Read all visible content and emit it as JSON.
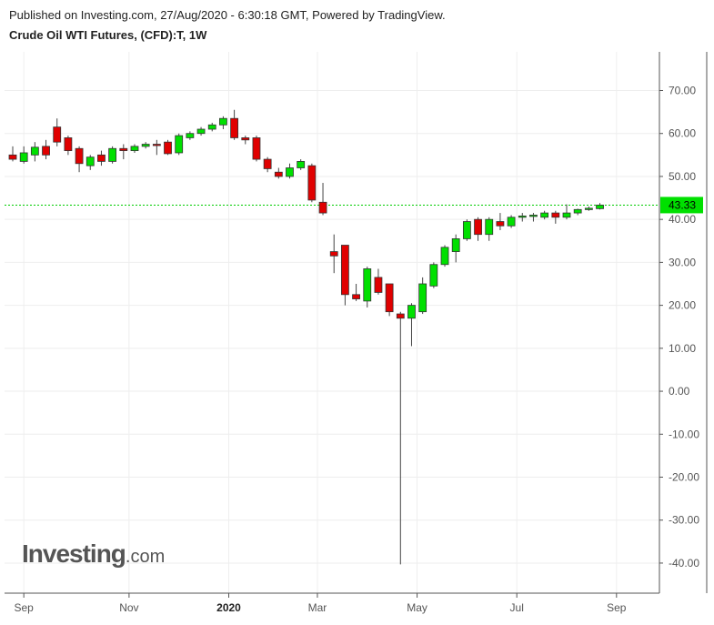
{
  "header": {
    "published": "Published on Investing.com, 27/Aug/2020 - 6:30:18 GMT, Powered by TradingView.",
    "title": "Crude Oil WTI Futures, (CFD):T, 1W"
  },
  "brand": {
    "name": "Investing",
    "suffix": ".com"
  },
  "colors": {
    "up": "#00e000",
    "down": "#e00000",
    "last_line": "#00cc00",
    "grid": "#eeeeee",
    "wick": "#444444"
  },
  "chart_data": {
    "type": "candlestick",
    "interval": "1W",
    "ylim": [
      -47,
      79
    ],
    "y_ticks": [
      "70.00",
      "60.00",
      "50.00",
      "40.00",
      "30.00",
      "20.00",
      "10.00",
      "0.00",
      "-10.00",
      "-20.00",
      "-30.00",
      "-40.00"
    ],
    "x_ticks": [
      {
        "label": "Sep",
        "week": 1,
        "bold": false
      },
      {
        "label": "Nov",
        "week": 10.5,
        "bold": false
      },
      {
        "label": "2020",
        "week": 19.5,
        "bold": true
      },
      {
        "label": "Mar",
        "week": 27.5,
        "bold": false
      },
      {
        "label": "May",
        "week": 36.5,
        "bold": false
      },
      {
        "label": "Jul",
        "week": 45.5,
        "bold": false
      },
      {
        "label": "Sep",
        "week": 54.5,
        "bold": false
      }
    ],
    "last_price": "43.33",
    "last_value": 43.33,
    "candles": [
      {
        "o": 55.0,
        "h": 57.0,
        "l": 53.5,
        "c": 54.0
      },
      {
        "o": 53.5,
        "h": 57.0,
        "l": 53.0,
        "c": 55.5
      },
      {
        "o": 55.0,
        "h": 58.0,
        "l": 53.5,
        "c": 56.8
      },
      {
        "o": 57.0,
        "h": 58.5,
        "l": 54.0,
        "c": 55.0
      },
      {
        "o": 61.5,
        "h": 63.5,
        "l": 57.0,
        "c": 58.0
      },
      {
        "o": 59.0,
        "h": 59.5,
        "l": 55.0,
        "c": 56.0
      },
      {
        "o": 56.5,
        "h": 57.0,
        "l": 51.0,
        "c": 53.0
      },
      {
        "o": 52.5,
        "h": 55.0,
        "l": 51.5,
        "c": 54.5
      },
      {
        "o": 55.0,
        "h": 56.0,
        "l": 52.5,
        "c": 53.5
      },
      {
        "o": 53.5,
        "h": 57.0,
        "l": 53.0,
        "c": 56.5
      },
      {
        "o": 56.5,
        "h": 57.5,
        "l": 54.0,
        "c": 56.0
      },
      {
        "o": 56.0,
        "h": 57.5,
        "l": 55.5,
        "c": 57.0
      },
      {
        "o": 57.0,
        "h": 58.0,
        "l": 56.5,
        "c": 57.5
      },
      {
        "o": 57.5,
        "h": 58.5,
        "l": 55.0,
        "c": 57.3
      },
      {
        "o": 58.0,
        "h": 58.5,
        "l": 55.0,
        "c": 55.3
      },
      {
        "o": 55.5,
        "h": 60.0,
        "l": 55.0,
        "c": 59.5
      },
      {
        "o": 59.0,
        "h": 60.5,
        "l": 58.5,
        "c": 60.0
      },
      {
        "o": 60.0,
        "h": 61.5,
        "l": 59.5,
        "c": 61.0
      },
      {
        "o": 61.0,
        "h": 62.5,
        "l": 60.5,
        "c": 62.0
      },
      {
        "o": 62.0,
        "h": 64.0,
        "l": 61.0,
        "c": 63.5
      },
      {
        "o": 63.5,
        "h": 65.5,
        "l": 58.5,
        "c": 59.0
      },
      {
        "o": 59.0,
        "h": 59.5,
        "l": 57.5,
        "c": 58.5
      },
      {
        "o": 59.0,
        "h": 59.5,
        "l": 53.5,
        "c": 54.0
      },
      {
        "o": 54.0,
        "h": 54.5,
        "l": 51.0,
        "c": 51.8
      },
      {
        "o": 51.0,
        "h": 52.0,
        "l": 49.5,
        "c": 50.0
      },
      {
        "o": 50.0,
        "h": 53.0,
        "l": 49.5,
        "c": 52.0
      },
      {
        "o": 52.0,
        "h": 54.0,
        "l": 51.5,
        "c": 53.5
      },
      {
        "o": 52.5,
        "h": 53.0,
        "l": 44.0,
        "c": 44.5
      },
      {
        "o": 44.0,
        "h": 48.5,
        "l": 41.0,
        "c": 41.5
      },
      {
        "o": 32.5,
        "h": 36.5,
        "l": 27.5,
        "c": 31.5
      },
      {
        "o": 34.0,
        "h": 34.0,
        "l": 20.0,
        "c": 22.5
      },
      {
        "o": 22.5,
        "h": 25.0,
        "l": 21.0,
        "c": 21.5
      },
      {
        "o": 21.0,
        "h": 29.0,
        "l": 19.5,
        "c": 28.5
      },
      {
        "o": 26.5,
        "h": 28.5,
        "l": 22.5,
        "c": 23.0
      },
      {
        "o": 25.0,
        "h": 25.0,
        "l": 17.5,
        "c": 18.5
      },
      {
        "o": 18.0,
        "h": 18.5,
        "l": -40.3,
        "c": 17.0
      },
      {
        "o": 17.0,
        "h": 20.5,
        "l": 10.5,
        "c": 20.0
      },
      {
        "o": 18.5,
        "h": 26.5,
        "l": 18.0,
        "c": 25.0
      },
      {
        "o": 24.5,
        "h": 30.0,
        "l": 24.0,
        "c": 29.5
      },
      {
        "o": 29.5,
        "h": 34.0,
        "l": 29.0,
        "c": 33.5
      },
      {
        "o": 32.5,
        "h": 36.5,
        "l": 30.0,
        "c": 35.5
      },
      {
        "o": 35.5,
        "h": 40.0,
        "l": 35.0,
        "c": 39.5
      },
      {
        "o": 40.0,
        "h": 40.5,
        "l": 35.0,
        "c": 36.5
      },
      {
        "o": 36.5,
        "h": 40.5,
        "l": 35.0,
        "c": 40.0
      },
      {
        "o": 39.5,
        "h": 41.5,
        "l": 37.5,
        "c": 38.5
      },
      {
        "o": 38.5,
        "h": 41.0,
        "l": 38.0,
        "c": 40.5
      },
      {
        "o": 40.5,
        "h": 41.5,
        "l": 39.5,
        "c": 40.8
      },
      {
        "o": 40.8,
        "h": 41.5,
        "l": 39.5,
        "c": 41.0
      },
      {
        "o": 40.5,
        "h": 42.0,
        "l": 40.0,
        "c": 41.5
      },
      {
        "o": 41.5,
        "h": 42.0,
        "l": 39.0,
        "c": 40.5
      },
      {
        "o": 40.5,
        "h": 43.5,
        "l": 40.0,
        "c": 41.5
      },
      {
        "o": 41.5,
        "h": 42.5,
        "l": 41.0,
        "c": 42.3
      },
      {
        "o": 42.3,
        "h": 43.0,
        "l": 42.0,
        "c": 42.6
      },
      {
        "o": 42.5,
        "h": 43.8,
        "l": 42.3,
        "c": 43.33
      }
    ]
  }
}
